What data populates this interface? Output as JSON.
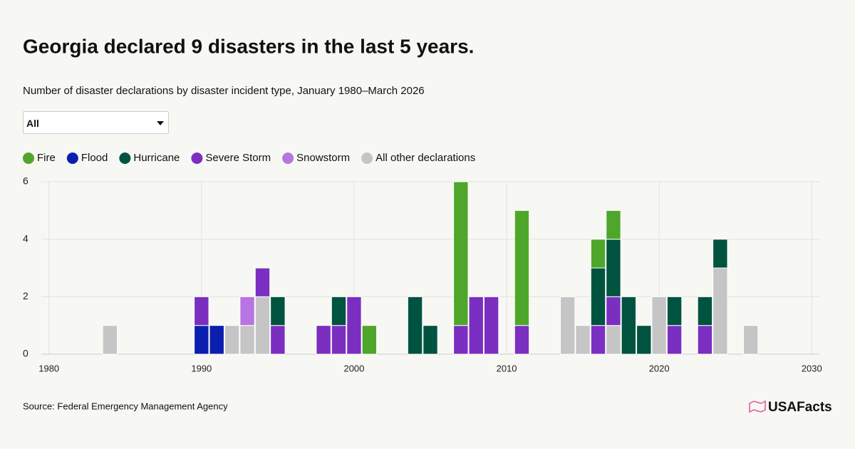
{
  "chart_data": {
    "type": "stacked_bar",
    "title": "Georgia declared 9 disasters in the last 5 years.",
    "subtitle": "Number of disaster declarations by disaster incident type, January 1980–March 2026",
    "filter": "All",
    "source": "Source: Federal Emergency Management Agency",
    "brand": "USAFacts",
    "x": [
      1984,
      1990,
      1991,
      1992,
      1993,
      1994,
      1995,
      1998,
      1999,
      2000,
      2001,
      2004,
      2005,
      2007,
      2008,
      2009,
      2011,
      2014,
      2015,
      2016,
      2017,
      2018,
      2019,
      2020,
      2021,
      2023,
      2024,
      2026
    ],
    "series": [
      {
        "name": "Fire",
        "color": "#4ea72a",
        "values": [
          0,
          0,
          0,
          0,
          0,
          0,
          0,
          0,
          0,
          0,
          1,
          0,
          0,
          5,
          0,
          0,
          4,
          0,
          0,
          1,
          1,
          0,
          0,
          0,
          0,
          0,
          0,
          0
        ]
      },
      {
        "name": "Flood",
        "color": "#0b1fae",
        "values": [
          0,
          1,
          1,
          0,
          0,
          0,
          0,
          0,
          0,
          0,
          0,
          0,
          0,
          0,
          0,
          0,
          0,
          0,
          0,
          0,
          0,
          0,
          0,
          0,
          0,
          0,
          0,
          0
        ]
      },
      {
        "name": "Hurricane",
        "color": "#00533f",
        "values": [
          0,
          0,
          0,
          0,
          0,
          0,
          1,
          0,
          1,
          0,
          0,
          2,
          1,
          0,
          0,
          0,
          0,
          0,
          0,
          2,
          2,
          2,
          1,
          0,
          1,
          1,
          1,
          0
        ]
      },
      {
        "name": "Severe Storm",
        "color": "#7b2fc1",
        "values": [
          0,
          1,
          0,
          0,
          0,
          1,
          1,
          1,
          1,
          2,
          0,
          0,
          0,
          1,
          2,
          2,
          1,
          0,
          0,
          1,
          1,
          0,
          0,
          0,
          1,
          1,
          0,
          0
        ]
      },
      {
        "name": "Snowstorm",
        "color": "#b874e0",
        "values": [
          0,
          0,
          0,
          0,
          1,
          0,
          0,
          0,
          0,
          0,
          0,
          0,
          0,
          0,
          0,
          0,
          0,
          0,
          0,
          0,
          0,
          0,
          0,
          0,
          0,
          0,
          0,
          0
        ]
      },
      {
        "name": "All other declarations",
        "color": "#c5c5c5",
        "values": [
          1,
          0,
          0,
          1,
          1,
          2,
          0,
          0,
          0,
          0,
          0,
          0,
          0,
          0,
          0,
          0,
          0,
          2,
          1,
          0,
          1,
          0,
          0,
          2,
          0,
          0,
          3,
          1
        ]
      }
    ],
    "xlim": [
      1979.5,
      2030.5
    ],
    "xticks": [
      1980,
      1990,
      2000,
      2010,
      2020,
      2030
    ],
    "ylim": [
      0,
      6
    ],
    "yticks": [
      0,
      2,
      4,
      6
    ],
    "grid": true
  }
}
